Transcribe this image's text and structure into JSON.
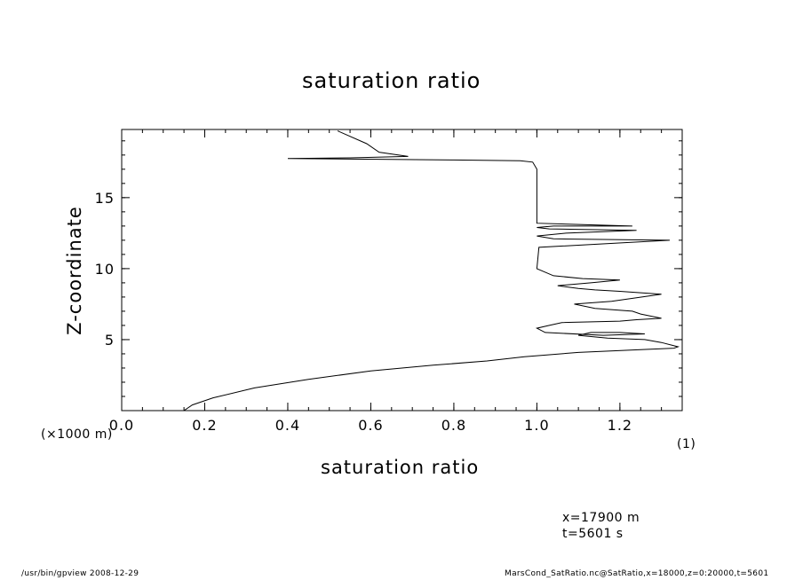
{
  "chart_data": {
    "type": "line",
    "title": "saturation ratio",
    "xlabel": "saturation ratio",
    "ylabel": "Z-coordinate",
    "x_unit": "(1)",
    "y_unit": "(×1000 m)",
    "xlim": [
      0.0,
      1.35
    ],
    "ylim": [
      0,
      19.8
    ],
    "x_ticks": [
      "0.0",
      "0.2",
      "0.4",
      "0.6",
      "0.8",
      "1.0",
      "1.2"
    ],
    "y_ticks": [
      "5",
      "10",
      "15"
    ],
    "grid": false,
    "series": [
      {
        "x": [
          0.15,
          0.17,
          0.22,
          0.32,
          0.45,
          0.6,
          0.75,
          0.88,
          0.97,
          1.1,
          1.25,
          1.33,
          1.34,
          1.3,
          1.26,
          1.17,
          1.1,
          1.13,
          1.2,
          1.26,
          1.16,
          1.02,
          1.0,
          1.03,
          1.06,
          1.2,
          1.24,
          1.3,
          1.25,
          1.23,
          1.14,
          1.09,
          1.18,
          1.3,
          1.2,
          1.14,
          1.1,
          1.05,
          1.13,
          1.2,
          1.11,
          1.04,
          1.0,
          1.005,
          1.32,
          1.04,
          1.0,
          1.07,
          1.24,
          1.03,
          1.0,
          1.04,
          1.23,
          1.0,
          1.0,
          1.0,
          0.99,
          0.96,
          0.8,
          0.62,
          0.4,
          0.55,
          0.69,
          0.62,
          0.59,
          0.52
        ],
        "y": [
          0.0,
          0.4,
          0.9,
          1.6,
          2.2,
          2.8,
          3.2,
          3.5,
          3.8,
          4.1,
          4.3,
          4.4,
          4.5,
          4.8,
          5.0,
          5.1,
          5.3,
          5.5,
          5.5,
          5.4,
          5.3,
          5.5,
          5.8,
          6.0,
          6.2,
          6.3,
          6.4,
          6.5,
          6.8,
          7.0,
          7.2,
          7.5,
          7.7,
          8.2,
          8.4,
          8.5,
          8.6,
          8.8,
          9.0,
          9.2,
          9.3,
          9.5,
          10.0,
          11.5,
          12.0,
          12.1,
          12.3,
          12.5,
          12.7,
          12.8,
          12.9,
          13.0,
          13.0,
          13.2,
          15.0,
          17.0,
          17.5,
          17.6,
          17.65,
          17.7,
          17.75,
          17.8,
          17.9,
          18.2,
          18.8,
          19.7
        ]
      }
    ]
  },
  "annotations": {
    "position_line1": "x=17900  m",
    "position_line2": "t=5601  s",
    "footer_left": "/usr/bin/gpview   2008-12-29",
    "footer_right": "MarsCond_SatRatio.nc@SatRatio,x=18000,z=0:20000,t=5601"
  }
}
